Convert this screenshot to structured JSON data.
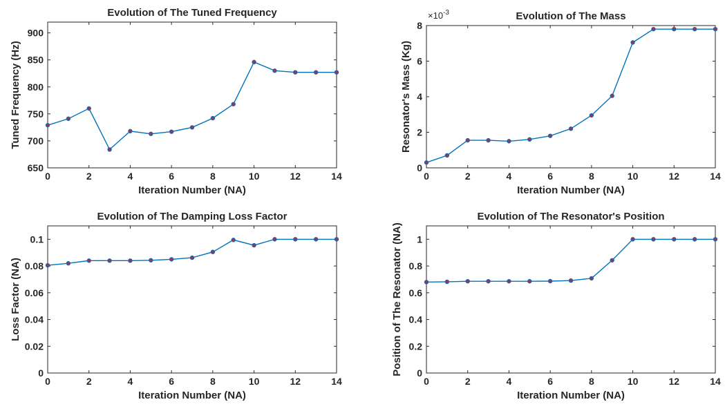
{
  "chart_data": [
    {
      "type": "line",
      "title": "Evolution of The Tuned Frequency",
      "xlabel": "Iteration Number (NA)",
      "ylabel": "Tuned Frequency (Hz)",
      "xlim": [
        0,
        14
      ],
      "ylim": [
        650,
        920
      ],
      "xticks": [
        0,
        2,
        4,
        6,
        8,
        10,
        12,
        14
      ],
      "yticks": [
        650,
        700,
        750,
        800,
        850,
        900
      ],
      "ytick_labels": [
        "650",
        "700",
        "750",
        "800",
        "850",
        "900"
      ],
      "y_multiplier": "",
      "grid": false,
      "x": [
        0,
        1,
        2,
        3,
        4,
        5,
        6,
        7,
        8,
        9,
        10,
        11,
        12,
        13,
        14
      ],
      "y": [
        729,
        741,
        760,
        684,
        718,
        713,
        717,
        725,
        742,
        768,
        846,
        830,
        827,
        827,
        827
      ],
      "line_color": "#0072BD",
      "marker_color": "#8B3A62"
    },
    {
      "type": "line",
      "title": "Evolution of The Mass",
      "xlabel": "Iteration Number (NA)",
      "ylabel": "Resonator's Mass (Kg)",
      "xlim": [
        0,
        14
      ],
      "ylim": [
        0,
        8
      ],
      "xticks": [
        0,
        2,
        4,
        6,
        8,
        10,
        12,
        14
      ],
      "yticks": [
        0,
        2,
        4,
        6,
        8
      ],
      "ytick_labels": [
        "0",
        "2",
        "4",
        "6",
        "8"
      ],
      "y_multiplier": "×10",
      "y_exponent": "-3",
      "grid": false,
      "x": [
        0,
        1,
        2,
        3,
        4,
        5,
        6,
        7,
        8,
        9,
        10,
        11,
        12,
        13,
        14
      ],
      "y": [
        0.3,
        0.7,
        1.55,
        1.55,
        1.5,
        1.6,
        1.8,
        2.2,
        2.95,
        4.05,
        7.05,
        7.8,
        7.8,
        7.8,
        7.8
      ],
      "line_color": "#0072BD",
      "marker_color": "#8B3A62"
    },
    {
      "type": "line",
      "title": "Evolution of The Damping Loss Factor",
      "xlabel": "Iteration Number (NA)",
      "ylabel": "Loss Factor (NA)",
      "xlim": [
        0,
        14
      ],
      "ylim": [
        0,
        0.11
      ],
      "xticks": [
        0,
        2,
        4,
        6,
        8,
        10,
        12,
        14
      ],
      "yticks": [
        0,
        0.02,
        0.04,
        0.06,
        0.08,
        0.1
      ],
      "ytick_labels": [
        "0",
        "0.02",
        "0.04",
        "0.06",
        "0.08",
        "0.1"
      ],
      "y_multiplier": "",
      "grid": false,
      "x": [
        0,
        1,
        2,
        3,
        4,
        5,
        6,
        7,
        8,
        9,
        10,
        11,
        12,
        13,
        14
      ],
      "y": [
        0.0805,
        0.082,
        0.084,
        0.084,
        0.084,
        0.0843,
        0.085,
        0.0862,
        0.0905,
        0.0995,
        0.0955,
        0.1,
        0.1,
        0.1,
        0.1
      ],
      "line_color": "#0072BD",
      "marker_color": "#8B3A62"
    },
    {
      "type": "line",
      "title": "Evolution of The Resonator's Position",
      "xlabel": "Iteration Number (NA)",
      "ylabel": "Position of The Resonator (NA)",
      "xlim": [
        0,
        14
      ],
      "ylim": [
        0,
        1.1
      ],
      "xticks": [
        0,
        2,
        4,
        6,
        8,
        10,
        12,
        14
      ],
      "yticks": [
        0,
        0.2,
        0.4,
        0.6,
        0.8,
        1
      ],
      "ytick_labels": [
        "0",
        "0.2",
        "0.4",
        "0.6",
        "0.8",
        "1"
      ],
      "y_multiplier": "",
      "grid": false,
      "x": [
        0,
        1,
        2,
        3,
        4,
        5,
        6,
        7,
        8,
        9,
        10,
        11,
        12,
        13,
        14
      ],
      "y": [
        0.68,
        0.682,
        0.686,
        0.686,
        0.686,
        0.686,
        0.687,
        0.691,
        0.708,
        0.843,
        1.0,
        1.0,
        1.0,
        1.0,
        1.0
      ],
      "line_color": "#0072BD",
      "marker_color": "#8B3A62"
    }
  ]
}
